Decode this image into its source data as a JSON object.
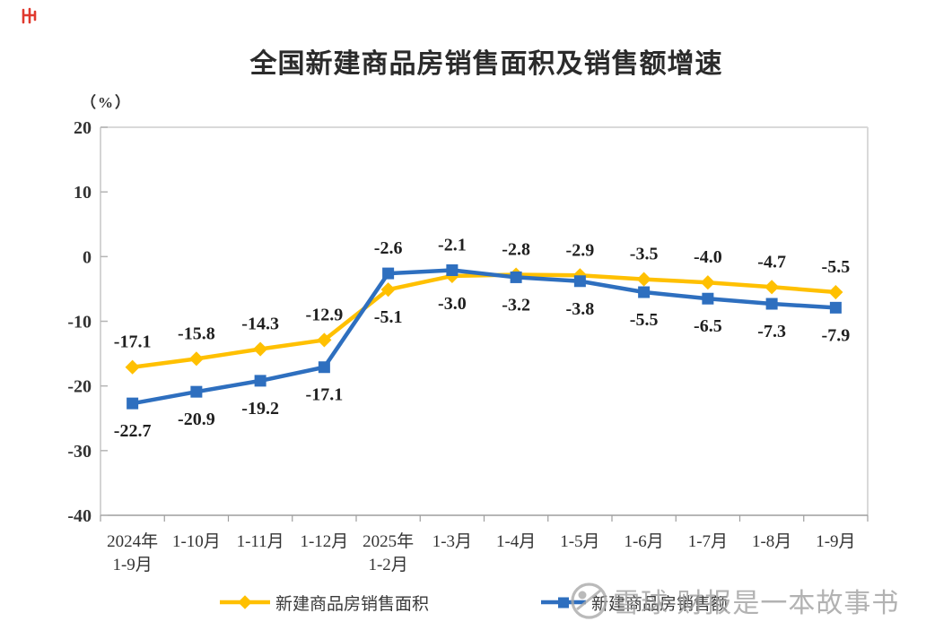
{
  "header": {
    "title": "全国新建商品房销售面积及销售额增速"
  },
  "chart_data": {
    "type": "line",
    "title": "全国新建商品房销售面积及销售额增速",
    "unit_label": "（%）",
    "categories": [
      [
        "2024年",
        "1-9月"
      ],
      [
        "1-10月"
      ],
      [
        "1-11月"
      ],
      [
        "1-12月"
      ],
      [
        "2025年",
        "1-2月"
      ],
      [
        "1-3月"
      ],
      [
        "1-4月"
      ],
      [
        "1-5月"
      ],
      [
        "1-6月"
      ],
      [
        "1-7月"
      ],
      [
        "1-8月"
      ],
      [
        "1-9月"
      ]
    ],
    "series": [
      {
        "name": "新建商品房销售面积",
        "color": "#FFC000",
        "marker": "diamond",
        "values": [
          -17.1,
          -15.8,
          -14.3,
          -12.9,
          -5.1,
          -3.0,
          -2.8,
          -2.9,
          -3.5,
          -4.0,
          -4.7,
          -5.5
        ]
      },
      {
        "name": "新建商品房销售额",
        "color": "#2E6FBF",
        "marker": "square",
        "values": [
          -22.7,
          -20.9,
          -19.2,
          -17.1,
          -2.6,
          -2.1,
          -3.2,
          -3.8,
          -5.5,
          -6.5,
          -7.3,
          -7.9
        ]
      }
    ],
    "ylim": [
      -40,
      20
    ],
    "yticks": [
      20,
      10,
      0,
      -10,
      -20,
      -30,
      -40
    ],
    "grid": false,
    "legend_position": "bottom",
    "colors": {
      "frame_light": "#d9d9d9",
      "axis_left": "#c6c6c6",
      "axis_bottom": "#9e9e9e",
      "tick": "#b5b5b5",
      "axis_text": "#333333",
      "point_label_text": "#1f1f1f"
    }
  },
  "watermark": {
    "logo": "xueqiu-circle-logo",
    "text": "雪球 财报是一本故事书"
  },
  "corner_icon": {
    "name": "red-logo-icon",
    "color": "#e0392e"
  }
}
